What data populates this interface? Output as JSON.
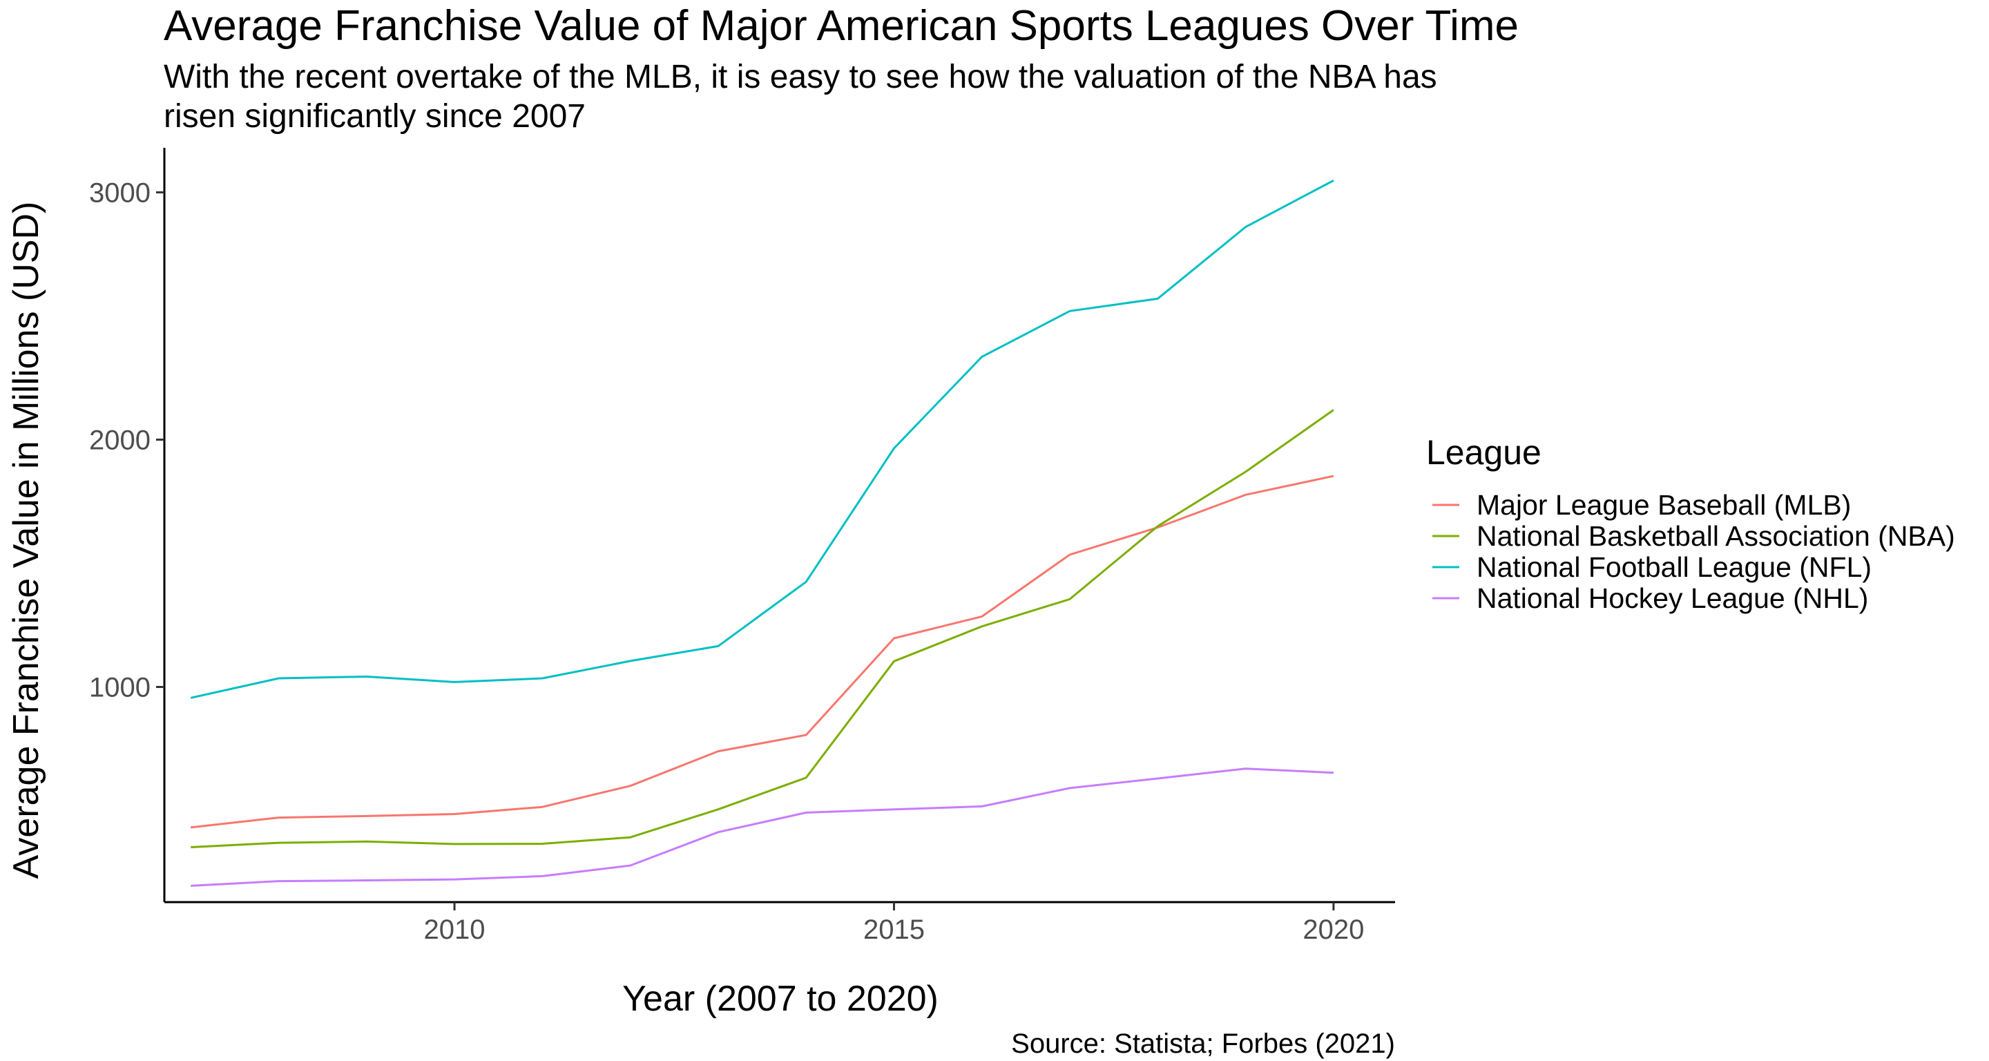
{
  "chart_data": {
    "type": "line",
    "title": "Average Franchise Value of Major American Sports Leagues Over Time",
    "subtitle_lines": [
      "With the recent overtake of the MLB, it is easy to see how the valuation of the NBA has",
      "risen significantly since 2007"
    ],
    "xlabel": "Year (2007 to 2020)",
    "ylabel": "Average Franchise Value in Millions (USD)",
    "caption": "Source: Statista; Forbes (2021)",
    "xlim": [
      2006.7,
      2020.7
    ],
    "ylim": [
      130,
      3180
    ],
    "x_ticks": [
      2010,
      2015,
      2020
    ],
    "y_ticks": [
      1000,
      2000,
      3000
    ],
    "grid": false,
    "legend": {
      "title": "League",
      "position": "right"
    },
    "x": [
      2007,
      2008,
      2009,
      2010,
      2011,
      2012,
      2013,
      2014,
      2015,
      2016,
      2017,
      2018,
      2019,
      2020
    ],
    "series": [
      {
        "name": "Major League Baseball (MLB)",
        "color": "#F8766D",
        "values": [
          432,
          472,
          478,
          486,
          515,
          600,
          740,
          806,
          1197,
          1285,
          1535,
          1645,
          1777,
          1853
        ]
      },
      {
        "name": "National Basketball Association (NBA)",
        "color": "#7CAE00",
        "values": [
          352,
          370,
          375,
          365,
          366,
          392,
          505,
          633,
          1104,
          1245,
          1355,
          1650,
          1870,
          2120
        ]
      },
      {
        "name": "National Football League (NFL)",
        "color": "#00BFC4",
        "values": [
          956,
          1035,
          1042,
          1020,
          1035,
          1105,
          1165,
          1425,
          1965,
          2335,
          2520,
          2570,
          2860,
          3048
        ]
      },
      {
        "name": "National Hockey League (NHL)",
        "color": "#C77CFF",
        "values": [
          196,
          215,
          218,
          222,
          235,
          278,
          413,
          492,
          505,
          517,
          591,
          630,
          670,
          653
        ]
      }
    ]
  }
}
